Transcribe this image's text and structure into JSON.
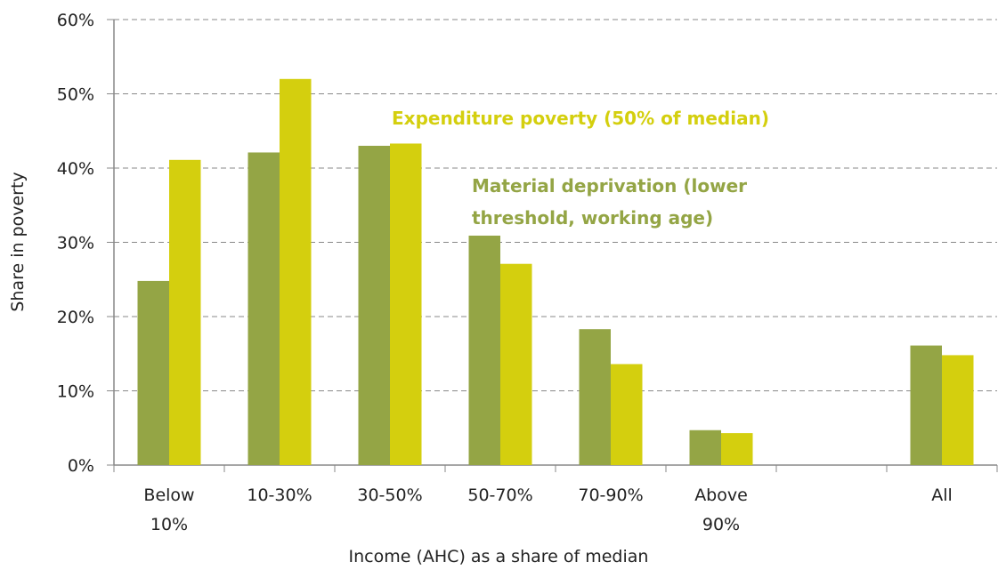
{
  "chart_data": {
    "type": "bar",
    "y_label": "Share in poverty",
    "x_label": "Income (AHC) as a share of median",
    "categories": [
      "Below 10%",
      "10-30%",
      "30-50%",
      "50-70%",
      "70-90%",
      "Above 90%",
      null,
      "All"
    ],
    "series": [
      {
        "name": "Material deprivation (lower threshold, working age)",
        "color": "#94a545",
        "values": [
          24.8,
          42.1,
          43.0,
          30.9,
          18.3,
          4.7,
          null,
          16.1
        ]
      },
      {
        "name": "Expenditure poverty (50% of median)",
        "color": "#d4cf0e",
        "values": [
          41.1,
          52.0,
          43.3,
          27.1,
          13.6,
          4.3,
          null,
          14.8
        ]
      }
    ],
    "ylim": [
      0,
      60
    ],
    "yticks": [
      {
        "value": 0,
        "label": "0%"
      },
      {
        "value": 10,
        "label": "10%"
      },
      {
        "value": 20,
        "label": "20%"
      },
      {
        "value": 30,
        "label": "30%"
      },
      {
        "value": 40,
        "label": "40%"
      },
      {
        "value": 50,
        "label": "50%"
      },
      {
        "value": 60,
        "label": "60%"
      }
    ],
    "grid": true
  }
}
